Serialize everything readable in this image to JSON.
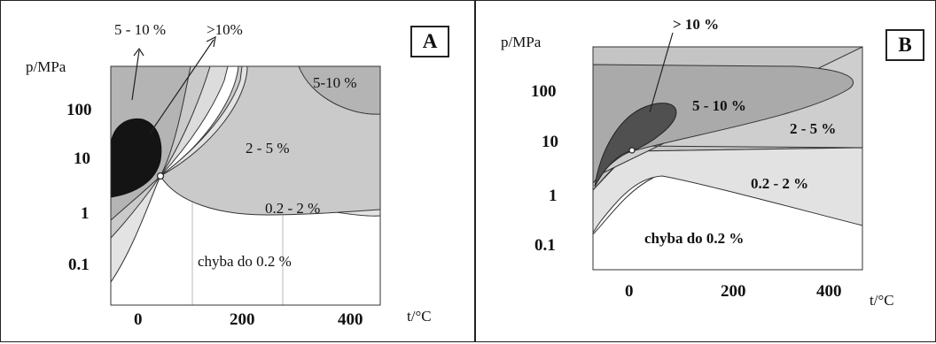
{
  "chart_data": [
    {
      "type": "contour",
      "panel_label": "A",
      "ylabel": "p/MPa",
      "xlabel": "t/°C",
      "y_scale": "log",
      "ytick_labels": [
        "100",
        "10",
        "1",
        "0.1"
      ],
      "xtick_labels": [
        "0",
        "200",
        "400"
      ],
      "xlim": [
        -50,
        450
      ],
      "ylim": [
        0.03,
        300
      ],
      "grid": "vertical",
      "regions": [
        {
          "label": "5-10 %",
          "color": "#b4b4b4"
        },
        {
          "label": "2 - 5 %",
          "color": "#cacaca"
        },
        {
          "label": "0.2 - 2 %",
          "color": "#e3e3e3"
        },
        {
          "label": "chyba do  0.2 %",
          "color": "#ffffff"
        },
        {
          "label": ">10%",
          "color": "#141414"
        }
      ],
      "annotations": [
        "5 - 10 %",
        ">10%"
      ]
    },
    {
      "type": "contour",
      "panel_label": "B",
      "ylabel": "p/MPa",
      "xlabel": "t/°C",
      "y_scale": "log",
      "ytick_labels": [
        "100",
        "10",
        "1",
        "0.1"
      ],
      "xtick_labels": [
        "0",
        "200",
        "400"
      ],
      "xlim": [
        -50,
        450
      ],
      "ylim": [
        0.05,
        700
      ],
      "grid": "none",
      "regions": [
        {
          "label": "> 10 %",
          "color": "#505050"
        },
        {
          "label": "5 - 10 %",
          "color": "#aaaaaa"
        },
        {
          "label": "2 - 5 %",
          "color": "#cecece"
        },
        {
          "label": "0.2 - 2 %",
          "color": "#e2e2e2"
        },
        {
          "label": "chyba do  0.2 %",
          "color": "#ffffff"
        }
      ]
    }
  ]
}
